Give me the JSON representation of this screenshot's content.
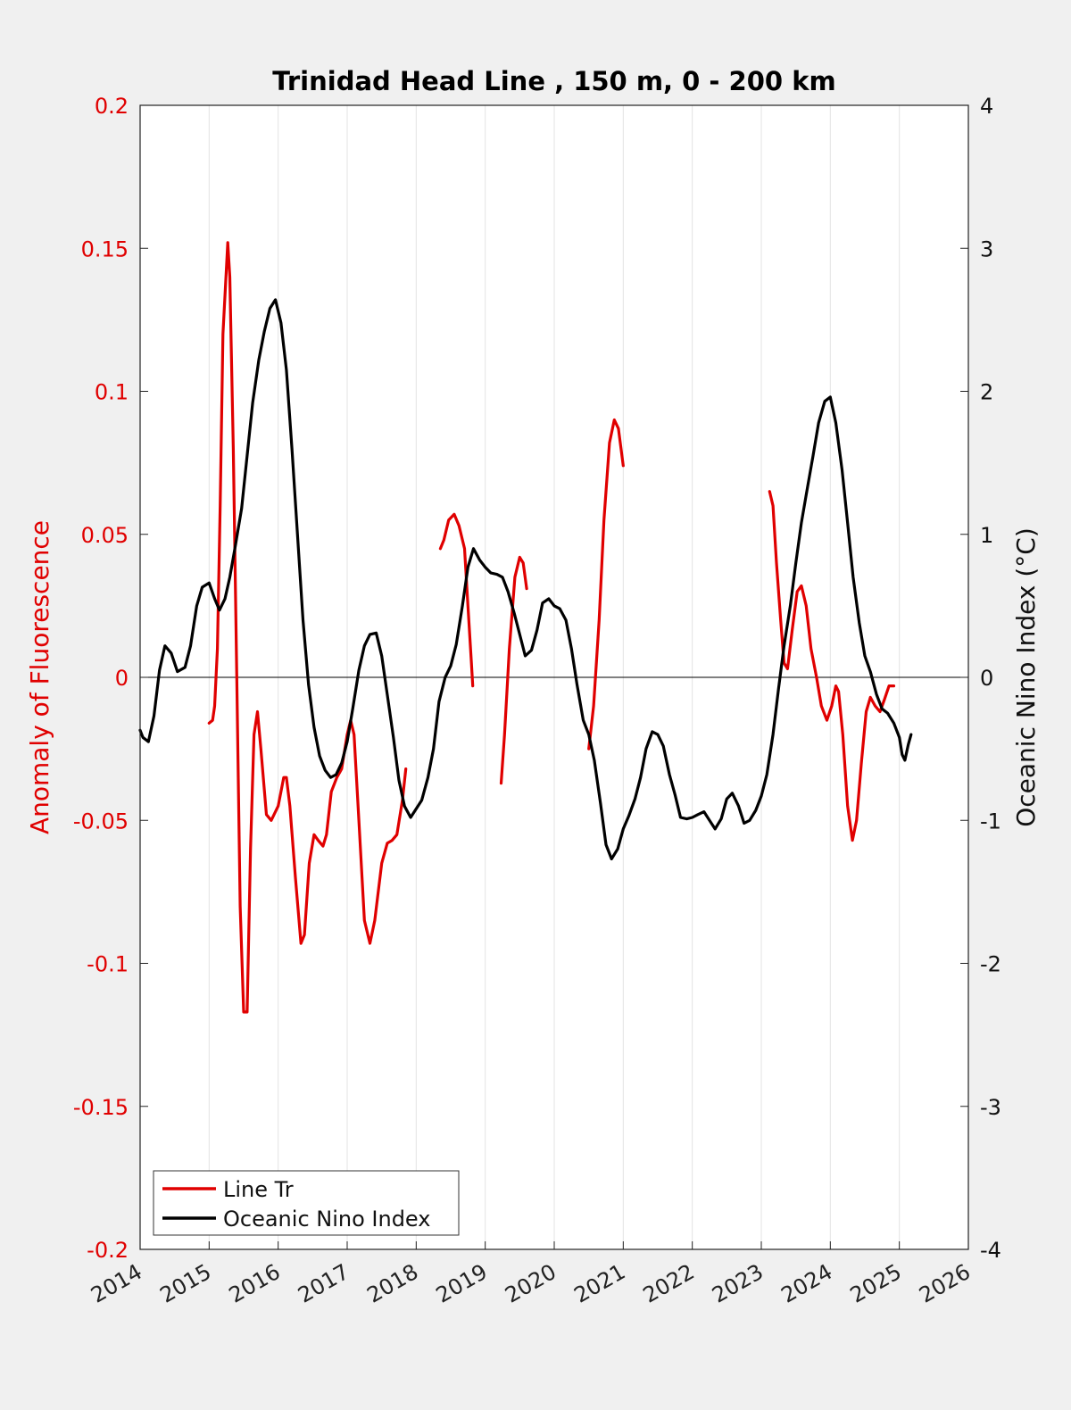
{
  "chart_data": {
    "type": "line",
    "title": "Trinidad Head Line , 150 m, 0 - 200 km",
    "xlabel": "",
    "x_ticks": [
      "2014",
      "2015",
      "2016",
      "2017",
      "2018",
      "2019",
      "2020",
      "2021",
      "2022",
      "2023",
      "2024",
      "2025",
      "2026"
    ],
    "xlim": [
      2014,
      2026
    ],
    "y_left": {
      "label": "Anomaly of Fluorescence",
      "ylim": [
        -0.2,
        0.2
      ],
      "ticks": [
        "-0.2",
        "-0.15",
        "-0.1",
        "-0.05",
        "0",
        "0.05",
        "0.1",
        "0.15",
        "0.2"
      ],
      "color": "#e00000"
    },
    "y_right": {
      "label": "Oceanic Nino Index (°C)",
      "ylim": [
        -4,
        4
      ],
      "ticks": [
        "-4",
        "-3",
        "-2",
        "-1",
        "0",
        "1",
        "2",
        "3",
        "4"
      ],
      "color": "#111111"
    },
    "grid": "vertical",
    "zero_line": true,
    "legend": {
      "placement": "bottom-left"
    },
    "series": [
      {
        "name": "Line Tr",
        "axis": "left",
        "color": "#e00000",
        "segments": [
          [
            [
              2015.0,
              -0.016
            ],
            [
              2015.05,
              -0.015
            ],
            [
              2015.08,
              -0.01
            ],
            [
              2015.12,
              0.01
            ],
            [
              2015.16,
              0.06
            ],
            [
              2015.2,
              0.12
            ],
            [
              2015.27,
              0.152
            ],
            [
              2015.3,
              0.14
            ],
            [
              2015.35,
              0.08
            ],
            [
              2015.4,
              0.0
            ],
            [
              2015.45,
              -0.08
            ],
            [
              2015.5,
              -0.117
            ],
            [
              2015.55,
              -0.117
            ],
            [
              2015.6,
              -0.06
            ],
            [
              2015.65,
              -0.02
            ],
            [
              2015.7,
              -0.012
            ],
            [
              2015.75,
              -0.025
            ],
            [
              2015.83,
              -0.048
            ],
            [
              2015.9,
              -0.05
            ],
            [
              2016.0,
              -0.045
            ],
            [
              2016.08,
              -0.035
            ],
            [
              2016.12,
              -0.035
            ],
            [
              2016.17,
              -0.045
            ],
            [
              2016.25,
              -0.07
            ],
            [
              2016.33,
              -0.093
            ],
            [
              2016.38,
              -0.09
            ],
            [
              2016.45,
              -0.065
            ],
            [
              2016.52,
              -0.055
            ],
            [
              2016.58,
              -0.057
            ],
            [
              2016.65,
              -0.059
            ],
            [
              2016.7,
              -0.055
            ],
            [
              2016.77,
              -0.04
            ],
            [
              2016.85,
              -0.035
            ],
            [
              2016.92,
              -0.032
            ],
            [
              2017.0,
              -0.02
            ],
            [
              2017.05,
              -0.015
            ],
            [
              2017.1,
              -0.02
            ],
            [
              2017.17,
              -0.05
            ],
            [
              2017.25,
              -0.085
            ],
            [
              2017.33,
              -0.093
            ],
            [
              2017.4,
              -0.085
            ],
            [
              2017.5,
              -0.065
            ],
            [
              2017.58,
              -0.058
            ],
            [
              2017.65,
              -0.057
            ],
            [
              2017.72,
              -0.055
            ],
            [
              2017.8,
              -0.043
            ],
            [
              2017.85,
              -0.032
            ]
          ],
          [
            [
              2018.35,
              0.045
            ],
            [
              2018.4,
              0.048
            ],
            [
              2018.47,
              0.055
            ],
            [
              2018.55,
              0.057
            ],
            [
              2018.62,
              0.053
            ],
            [
              2018.7,
              0.045
            ],
            [
              2018.75,
              0.025
            ],
            [
              2018.8,
              0.005
            ],
            [
              2018.82,
              -0.003
            ]
          ],
          [
            [
              2019.23,
              -0.037
            ],
            [
              2019.28,
              -0.02
            ],
            [
              2019.35,
              0.01
            ],
            [
              2019.43,
              0.035
            ],
            [
              2019.5,
              0.042
            ],
            [
              2019.55,
              0.04
            ],
            [
              2019.6,
              0.031
            ]
          ],
          [
            [
              2020.5,
              -0.025
            ],
            [
              2020.57,
              -0.01
            ],
            [
              2020.65,
              0.02
            ],
            [
              2020.72,
              0.055
            ],
            [
              2020.8,
              0.082
            ],
            [
              2020.87,
              0.09
            ],
            [
              2020.93,
              0.087
            ],
            [
              2021.0,
              0.074
            ]
          ],
          [
            [
              2023.12,
              0.065
            ],
            [
              2023.17,
              0.06
            ],
            [
              2023.22,
              0.04
            ],
            [
              2023.28,
              0.02
            ],
            [
              2023.33,
              0.005
            ],
            [
              2023.38,
              0.003
            ],
            [
              2023.45,
              0.017
            ],
            [
              2023.52,
              0.03
            ],
            [
              2023.58,
              0.032
            ],
            [
              2023.65,
              0.025
            ],
            [
              2023.72,
              0.01
            ],
            [
              2023.8,
              0.0
            ],
            [
              2023.87,
              -0.01
            ],
            [
              2023.95,
              -0.015
            ],
            [
              2024.02,
              -0.01
            ],
            [
              2024.08,
              -0.003
            ],
            [
              2024.12,
              -0.005
            ],
            [
              2024.18,
              -0.02
            ],
            [
              2024.25,
              -0.045
            ],
            [
              2024.32,
              -0.057
            ],
            [
              2024.38,
              -0.05
            ],
            [
              2024.45,
              -0.03
            ],
            [
              2024.52,
              -0.012
            ],
            [
              2024.58,
              -0.007
            ],
            [
              2024.65,
              -0.01
            ],
            [
              2024.72,
              -0.012
            ],
            [
              2024.78,
              -0.008
            ],
            [
              2024.85,
              -0.003
            ],
            [
              2024.92,
              -0.003
            ]
          ]
        ]
      },
      {
        "name": "Oceanic Nino Index",
        "axis": "right",
        "color": "#000000",
        "segments": [
          [
            [
              2014.0,
              -0.37
            ],
            [
              2014.04,
              -0.42
            ],
            [
              2014.12,
              -0.45
            ],
            [
              2014.2,
              -0.27
            ],
            [
              2014.28,
              0.05
            ],
            [
              2014.36,
              0.22
            ],
            [
              2014.45,
              0.17
            ],
            [
              2014.54,
              0.04
            ],
            [
              2014.65,
              0.07
            ],
            [
              2014.73,
              0.22
            ],
            [
              2014.82,
              0.5
            ],
            [
              2014.9,
              0.63
            ],
            [
              2015.0,
              0.66
            ],
            [
              2015.08,
              0.55
            ],
            [
              2015.15,
              0.47
            ],
            [
              2015.23,
              0.55
            ],
            [
              2015.3,
              0.7
            ],
            [
              2015.38,
              0.92
            ],
            [
              2015.47,
              1.18
            ],
            [
              2015.55,
              1.55
            ],
            [
              2015.63,
              1.92
            ],
            [
              2015.72,
              2.22
            ],
            [
              2015.8,
              2.42
            ],
            [
              2015.88,
              2.58
            ],
            [
              2015.96,
              2.64
            ],
            [
              2016.04,
              2.48
            ],
            [
              2016.12,
              2.15
            ],
            [
              2016.2,
              1.6
            ],
            [
              2016.28,
              1.0
            ],
            [
              2016.36,
              0.4
            ],
            [
              2016.44,
              -0.05
            ],
            [
              2016.52,
              -0.35
            ],
            [
              2016.6,
              -0.55
            ],
            [
              2016.68,
              -0.65
            ],
            [
              2016.76,
              -0.7
            ],
            [
              2016.84,
              -0.68
            ],
            [
              2016.92,
              -0.6
            ],
            [
              2017.0,
              -0.45
            ],
            [
              2017.08,
              -0.22
            ],
            [
              2017.17,
              0.05
            ],
            [
              2017.25,
              0.22
            ],
            [
              2017.33,
              0.3
            ],
            [
              2017.42,
              0.31
            ],
            [
              2017.5,
              0.15
            ],
            [
              2017.58,
              -0.12
            ],
            [
              2017.67,
              -0.42
            ],
            [
              2017.75,
              -0.72
            ],
            [
              2017.83,
              -0.9
            ],
            [
              2017.92,
              -0.98
            ],
            [
              2018.0,
              -0.92
            ],
            [
              2018.08,
              -0.86
            ],
            [
              2018.17,
              -0.7
            ],
            [
              2018.25,
              -0.5
            ],
            [
              2018.33,
              -0.17
            ],
            [
              2018.42,
              0.0
            ],
            [
              2018.5,
              0.08
            ],
            [
              2018.58,
              0.23
            ],
            [
              2018.67,
              0.5
            ],
            [
              2018.75,
              0.77
            ],
            [
              2018.83,
              0.9
            ],
            [
              2018.92,
              0.82
            ],
            [
              2019.0,
              0.77
            ],
            [
              2019.08,
              0.73
            ],
            [
              2019.17,
              0.72
            ],
            [
              2019.25,
              0.7
            ],
            [
              2019.33,
              0.6
            ],
            [
              2019.42,
              0.45
            ],
            [
              2019.5,
              0.3
            ],
            [
              2019.58,
              0.15
            ],
            [
              2019.67,
              0.19
            ],
            [
              2019.75,
              0.33
            ],
            [
              2019.83,
              0.52
            ],
            [
              2019.92,
              0.55
            ],
            [
              2020.0,
              0.5
            ],
            [
              2020.08,
              0.48
            ],
            [
              2020.17,
              0.4
            ],
            [
              2020.25,
              0.2
            ],
            [
              2020.33,
              -0.05
            ],
            [
              2020.42,
              -0.3
            ],
            [
              2020.5,
              -0.4
            ],
            [
              2020.58,
              -0.58
            ],
            [
              2020.67,
              -0.88
            ],
            [
              2020.75,
              -1.17
            ],
            [
              2020.83,
              -1.27
            ],
            [
              2020.92,
              -1.2
            ],
            [
              2021.0,
              -1.06
            ],
            [
              2021.08,
              -0.97
            ],
            [
              2021.17,
              -0.85
            ],
            [
              2021.25,
              -0.7
            ],
            [
              2021.33,
              -0.5
            ],
            [
              2021.42,
              -0.38
            ],
            [
              2021.5,
              -0.4
            ],
            [
              2021.58,
              -0.48
            ],
            [
              2021.67,
              -0.68
            ],
            [
              2021.75,
              -0.82
            ],
            [
              2021.83,
              -0.98
            ],
            [
              2021.92,
              -0.99
            ],
            [
              2022.0,
              -0.98
            ],
            [
              2022.08,
              -0.96
            ],
            [
              2022.17,
              -0.94
            ],
            [
              2022.25,
              -1.0
            ],
            [
              2022.33,
              -1.06
            ],
            [
              2022.42,
              -0.99
            ],
            [
              2022.5,
              -0.85
            ],
            [
              2022.58,
              -0.81
            ],
            [
              2022.67,
              -0.9
            ],
            [
              2022.75,
              -1.02
            ],
            [
              2022.83,
              -1.0
            ],
            [
              2022.92,
              -0.93
            ],
            [
              2023.0,
              -0.83
            ],
            [
              2023.08,
              -0.68
            ],
            [
              2023.17,
              -0.4
            ],
            [
              2023.25,
              -0.08
            ],
            [
              2023.33,
              0.22
            ],
            [
              2023.42,
              0.5
            ],
            [
              2023.5,
              0.8
            ],
            [
              2023.58,
              1.08
            ],
            [
              2023.67,
              1.33
            ],
            [
              2023.75,
              1.55
            ],
            [
              2023.83,
              1.78
            ],
            [
              2023.92,
              1.93
            ],
            [
              2024.0,
              1.96
            ],
            [
              2024.08,
              1.78
            ],
            [
              2024.17,
              1.45
            ],
            [
              2024.25,
              1.08
            ],
            [
              2024.33,
              0.7
            ],
            [
              2024.42,
              0.38
            ],
            [
              2024.5,
              0.15
            ],
            [
              2024.58,
              0.04
            ],
            [
              2024.67,
              -0.12
            ],
            [
              2024.75,
              -0.22
            ],
            [
              2024.83,
              -0.25
            ],
            [
              2024.92,
              -0.32
            ],
            [
              2025.0,
              -0.42
            ],
            [
              2025.04,
              -0.54
            ],
            [
              2025.08,
              -0.58
            ],
            [
              2025.13,
              -0.47
            ],
            [
              2025.17,
              -0.4
            ]
          ]
        ]
      }
    ]
  }
}
